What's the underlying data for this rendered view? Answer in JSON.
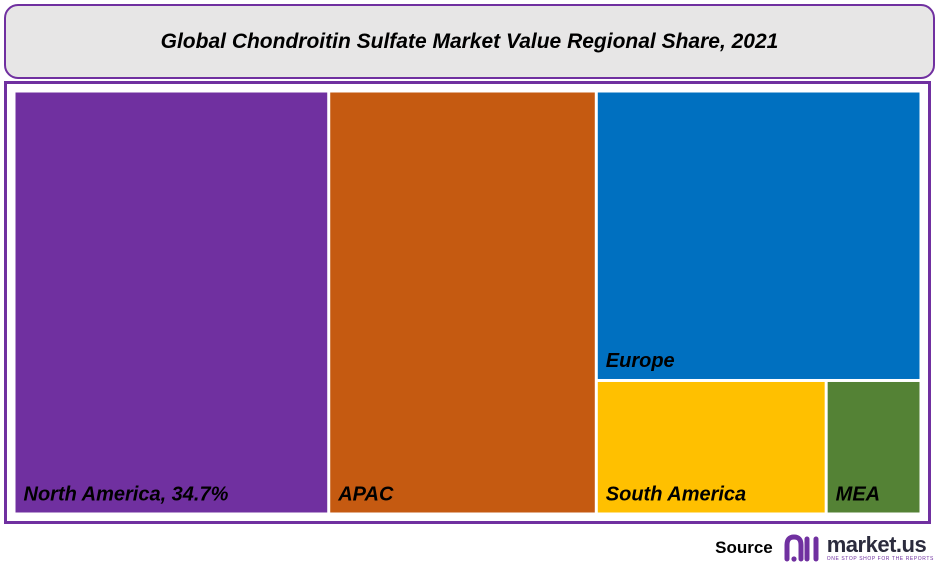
{
  "title": "Global Chondroitin Sulfate Market Value Regional Share, 2021",
  "chart_data": {
    "type": "treemap",
    "title": "Global Chondroitin Sulfate Market Value Regional Share, 2021",
    "items": [
      {
        "name": "North America",
        "label": "North America, 34.7%",
        "value": 34.7,
        "color": "#7030a0"
      },
      {
        "name": "APAC",
        "label": "APAC",
        "value": 29.5,
        "color": "#c55a11"
      },
      {
        "name": "Europe",
        "label": "Europe",
        "value": 24.5,
        "color": "#0070c0"
      },
      {
        "name": "South America",
        "label": "South America",
        "value": 8.0,
        "color": "#ffc000"
      },
      {
        "name": "MEA",
        "label": "MEA",
        "value": 3.3,
        "color": "#548235"
      }
    ]
  },
  "footer": {
    "source_label": "Source",
    "logo_name": "market.us",
    "logo_tagline": "ONE STOP SHOP FOR THE REPORTS"
  },
  "colors": {
    "frame": "#7030a0",
    "title_bg": "#e7e6e6"
  }
}
